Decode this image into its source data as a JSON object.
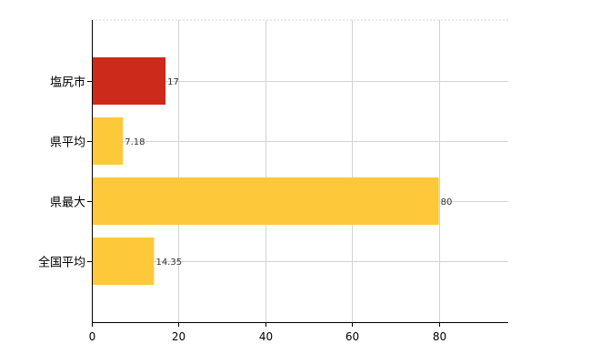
{
  "chart_data": {
    "type": "bar",
    "orientation": "horizontal",
    "title": "",
    "xlabel": "",
    "ylabel": "",
    "categories": [
      "塩尻市",
      "県平均",
      "県最大",
      "全国平均"
    ],
    "values": [
      17,
      7.18,
      80,
      14.35
    ],
    "data_labels": [
      "17",
      "7.18",
      "80",
      "14.35"
    ],
    "bar_colors": [
      "#cc2a1a",
      "#fdc93a",
      "#fdc93a",
      "#fdc93a"
    ],
    "xlim": [
      0,
      96
    ],
    "x_ticks": [
      0,
      20,
      40,
      60,
      80
    ],
    "grid": true,
    "legend": "none"
  }
}
